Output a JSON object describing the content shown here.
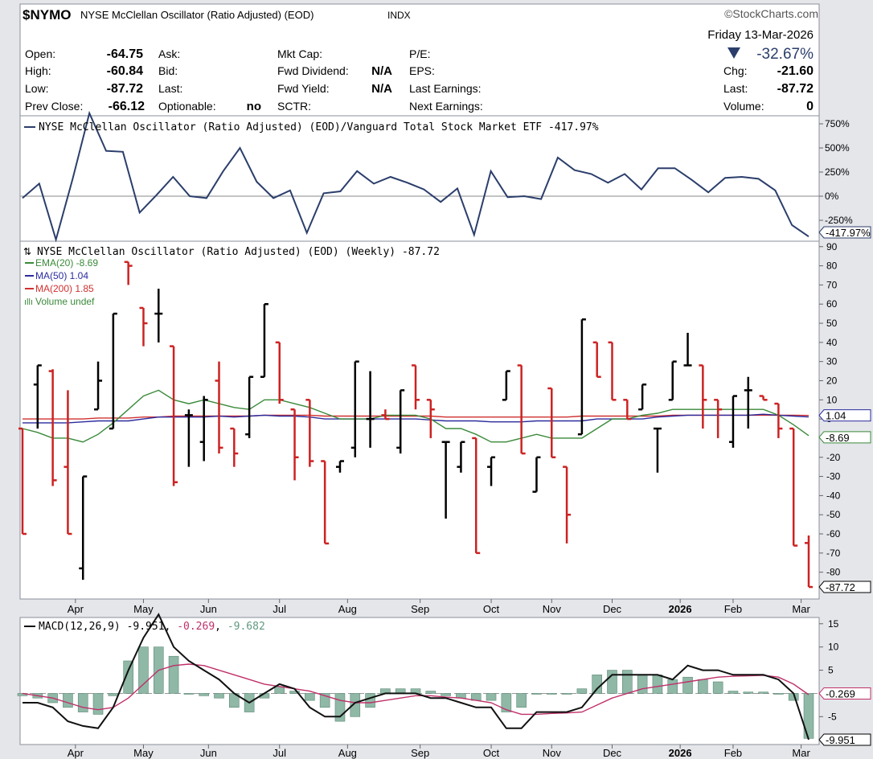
{
  "header": {
    "symbol": "$NYMO",
    "name": "NYSE McClellan Oscillator (Ratio Adjusted) (EOD)",
    "exchange": "INDX",
    "brand": "StockCharts.com",
    "date": "Friday  13-Mar-2026",
    "stats": {
      "open_label": "Open:",
      "open": "-64.75",
      "high_label": "High:",
      "high": "-60.84",
      "low_label": "Low:",
      "low": "-87.72",
      "prev_label": "Prev Close:",
      "prev": "-66.12",
      "ask_label": "Ask:",
      "bid_label": "Bid:",
      "last_label": "Last:",
      "optionable_label": "Optionable:",
      "optionable": "no",
      "mktcap_label": "Mkt Cap:",
      "fwddiv_label": "Fwd Dividend:",
      "fwddiv": "N/A",
      "fwdyield_label": "Fwd Yield:",
      "fwdyield": "N/A",
      "sctr_label": "SCTR:",
      "pe_label": "P/E:",
      "eps_label": "EPS:",
      "lastearn_label": "Last Earnings:",
      "nextearn_label": "Next Earnings:",
      "change_pct": "-32.67%",
      "chg_label": "Chg:",
      "chg": "-21.60",
      "last2_label": "Last:",
      "last2": "-87.72",
      "volume_label": "Volume:",
      "volume": "0"
    }
  },
  "colors": {
    "bg": "#e4e6ea",
    "panel": "#ffffff",
    "up": "#000000",
    "down": "#cc2222",
    "ema": "#3a8a3a",
    "ma50": "#2b2b9e",
    "ma200": "#d03030",
    "ratio": "#2b3e6b",
    "macd": "#111111",
    "signal": "#c0306a",
    "hist": "#8fb8a6",
    "accent": "#2b3e6b"
  },
  "chart_data": [
    {
      "type": "line",
      "title": "NYSE McClellan Oscillator (Ratio Adjusted) (EOD)/Vanguard Total Stock Market ETF -417.97%",
      "ylabel": "",
      "yticks": [
        "750%",
        "500%",
        "250%",
        "0%",
        "-250%"
      ],
      "tick_values": [
        750,
        500,
        250,
        0,
        -250
      ],
      "ylim": [
        -450,
        800
      ],
      "current_label": "-417.97%",
      "series": [
        {
          "values": [
            -20,
            130,
            -450,
            180,
            860,
            470,
            460,
            -170,
            10,
            200,
            0,
            -20,
            260,
            500,
            150,
            -20,
            60,
            -380,
            30,
            50,
            260,
            130,
            200,
            140,
            70,
            -60,
            80,
            -400,
            260,
            -10,
            0,
            -30,
            400,
            270,
            230,
            140,
            230,
            70,
            290,
            290,
            170,
            40,
            190,
            200,
            180,
            60,
            -300,
            -417.97
          ]
        }
      ]
    },
    {
      "type": "ohlc",
      "title": "NYSE McClellan Oscillator (Ratio Adjusted) (EOD) (Weekly) -87.72",
      "legend": [
        {
          "name": "EMA(20) -8.69",
          "color": "#3a8a3a"
        },
        {
          "name": "MA(50) 1.04",
          "color": "#2b2b9e"
        },
        {
          "name": "MA(200) 1.85",
          "color": "#d03030"
        },
        {
          "name": "Volume undef",
          "color": "#3a8a3a"
        }
      ],
      "xlabels": [
        "Apr",
        "May",
        "Jun",
        "Jul",
        "Aug",
        "Sep",
        "Oct",
        "Nov",
        "Dec",
        "2026",
        "Feb",
        "Mar"
      ],
      "xlabel_weeks": [
        3.5,
        8,
        12.3,
        17,
        21.5,
        26.3,
        31,
        35,
        39,
        43.5,
        47,
        51.5
      ],
      "yticks": [
        90,
        80,
        70,
        60,
        50,
        40,
        30,
        20,
        10,
        0,
        -10,
        -20,
        -30,
        -40,
        -50,
        -60,
        -70,
        -80
      ],
      "ylim": [
        -94,
        92
      ],
      "labels": {
        "ma50": "1.04",
        "ema20": "-8.69",
        "last": "-87.72"
      },
      "candles": [
        {
          "w": 0,
          "o": -5,
          "h": -5,
          "l": -60,
          "c": -60
        },
        {
          "w": 1,
          "o": 18,
          "h": 28,
          "l": -5,
          "c": 28
        },
        {
          "w": 2,
          "o": 25,
          "h": 26,
          "l": -35,
          "c": -32
        },
        {
          "w": 3,
          "o": -25,
          "h": 15,
          "l": -60,
          "c": -60
        },
        {
          "w": 4,
          "o": -78,
          "h": -30,
          "l": -84,
          "c": -30
        },
        {
          "w": 5,
          "o": 5,
          "h": 30,
          "l": 5,
          "c": 20
        },
        {
          "w": 6,
          "o": -5,
          "h": 55,
          "l": -5,
          "c": 55
        },
        {
          "w": 7,
          "o": 82,
          "h": 82,
          "l": 70,
          "c": 80
        },
        {
          "w": 8,
          "o": 58,
          "h": 58,
          "l": 38,
          "c": 50
        },
        {
          "w": 9,
          "o": 55,
          "h": 68,
          "l": 40,
          "c": 55
        },
        {
          "w": 10,
          "o": 38,
          "h": 38,
          "l": -35,
          "c": -33
        },
        {
          "w": 11,
          "o": 2,
          "h": 5,
          "l": -25,
          "c": 2
        },
        {
          "w": 12,
          "o": -12,
          "h": 12,
          "l": -22,
          "c": 10
        },
        {
          "w": 13,
          "o": 20,
          "h": 30,
          "l": -18,
          "c": -15
        },
        {
          "w": 14,
          "o": -5,
          "h": -5,
          "l": -25,
          "c": -18
        },
        {
          "w": 15,
          "o": -8,
          "h": 22,
          "l": -10,
          "c": 22
        },
        {
          "w": 16,
          "o": 22,
          "h": 60,
          "l": 22,
          "c": 60
        },
        {
          "w": 17,
          "o": 40,
          "h": 40,
          "l": 8,
          "c": 10
        },
        {
          "w": 18,
          "o": 5,
          "h": 5,
          "l": -32,
          "c": -20
        },
        {
          "w": 19,
          "o": 10,
          "h": 10,
          "l": -25,
          "c": -22
        },
        {
          "w": 20,
          "o": -22,
          "h": -22,
          "l": -65,
          "c": -65
        },
        {
          "w": 21,
          "o": -25,
          "h": -22,
          "l": -28,
          "c": -22
        },
        {
          "w": 22,
          "o": -15,
          "h": 30,
          "l": -20,
          "c": 30
        },
        {
          "w": 23,
          "o": 0,
          "h": 25,
          "l": -15,
          "c": 0
        },
        {
          "w": 24,
          "o": 2,
          "h": 5,
          "l": 0,
          "c": 0
        },
        {
          "w": 25,
          "o": -15,
          "h": 15,
          "l": -18,
          "c": 15
        },
        {
          "w": 26,
          "o": 28,
          "h": 28,
          "l": 5,
          "c": 10
        },
        {
          "w": 27,
          "o": 10,
          "h": 10,
          "l": -10,
          "c": 5
        },
        {
          "w": 28,
          "o": -12,
          "h": -12,
          "l": -52,
          "c": -12
        },
        {
          "w": 29,
          "o": -25,
          "h": -12,
          "l": -28,
          "c": -12
        },
        {
          "w": 30,
          "o": -10,
          "h": -10,
          "l": -70,
          "c": -70
        },
        {
          "w": 31,
          "o": -25,
          "h": -20,
          "l": -35,
          "c": -20
        },
        {
          "w": 32,
          "o": 10,
          "h": 25,
          "l": 10,
          "c": 25
        },
        {
          "w": 33,
          "o": 28,
          "h": 28,
          "l": -18,
          "c": -18
        },
        {
          "w": 34,
          "o": -38,
          "h": -20,
          "l": -38,
          "c": -20
        },
        {
          "w": 35,
          "o": 16,
          "h": 16,
          "l": -20,
          "c": -20
        },
        {
          "w": 36,
          "o": -25,
          "h": -25,
          "l": -65,
          "c": -50
        },
        {
          "w": 37,
          "o": -8,
          "h": 52,
          "l": -8,
          "c": 52
        },
        {
          "w": 38,
          "o": 40,
          "h": 40,
          "l": 22,
          "c": 22
        },
        {
          "w": 39,
          "o": 40,
          "h": 40,
          "l": 10,
          "c": 10
        },
        {
          "w": 40,
          "o": 10,
          "h": 10,
          "l": 0,
          "c": 0
        },
        {
          "w": 41,
          "o": 5,
          "h": 18,
          "l": 5,
          "c": 18
        },
        {
          "w": 42,
          "o": -5,
          "h": -5,
          "l": -28,
          "c": -5
        },
        {
          "w": 43,
          "o": 10,
          "h": 30,
          "l": 10,
          "c": 30
        },
        {
          "w": 44,
          "o": 28,
          "h": 45,
          "l": 28,
          "c": 28
        },
        {
          "w": 45,
          "o": 28,
          "h": 28,
          "l": -5,
          "c": 10
        },
        {
          "w": 46,
          "o": 10,
          "h": 10,
          "l": -10,
          "c": 5
        },
        {
          "w": 47,
          "o": -12,
          "h": 12,
          "l": -15,
          "c": 12
        },
        {
          "w": 48,
          "o": 15,
          "h": 22,
          "l": -5,
          "c": 15
        },
        {
          "w": 49,
          "o": 12,
          "h": 12,
          "l": 10,
          "c": 10
        },
        {
          "w": 50,
          "o": 8,
          "h": 8,
          "l": -10,
          "c": -5
        },
        {
          "w": 51,
          "o": -5,
          "h": -5,
          "l": -66.12,
          "c": -66.12
        },
        {
          "w": 52,
          "o": -64.75,
          "h": -60.84,
          "l": -87.72,
          "c": -87.72
        }
      ],
      "ema20": [
        -5,
        -7,
        -10,
        -10,
        -12,
        -8,
        -2,
        5,
        12,
        15,
        10,
        8,
        10,
        8,
        6,
        5,
        10,
        10,
        8,
        6,
        3,
        0,
        0,
        0,
        2,
        2,
        2,
        0,
        -5,
        -5,
        -8,
        -12,
        -12,
        -10,
        -8,
        -10,
        -10,
        -10,
        -5,
        0,
        0,
        2,
        3,
        5,
        5,
        5,
        5,
        5,
        5,
        5,
        2,
        -3,
        -8.69
      ],
      "ma50": [
        -2,
        -2,
        -2,
        -2,
        -1.5,
        -1,
        -1,
        -1,
        0,
        1,
        1,
        1,
        1,
        1.5,
        1,
        1.5,
        2,
        1.5,
        1.5,
        1,
        0,
        0,
        0,
        0,
        0,
        0,
        0,
        -0.5,
        -1,
        -1,
        -1,
        -1.5,
        -1.5,
        -1.5,
        -1,
        -1,
        -1,
        -1,
        0,
        0,
        0,
        0,
        1,
        1.5,
        2,
        2,
        2,
        2,
        2,
        2.5,
        2,
        1.5,
        1.04
      ],
      "ma200": [
        0,
        0,
        0,
        0,
        0,
        0.5,
        0.5,
        0.5,
        1,
        1,
        1.5,
        1.5,
        1.5,
        1.5,
        1.5,
        1.5,
        2,
        2,
        2,
        2,
        1.5,
        1.5,
        1.5,
        1.5,
        1.5,
        1.5,
        1.5,
        1.5,
        1,
        1,
        1,
        1,
        1,
        1,
        1,
        1,
        1,
        1.5,
        1.5,
        1.5,
        1.5,
        1.5,
        1.5,
        2,
        2,
        2,
        2,
        2,
        2,
        2,
        2,
        2,
        1.85
      ]
    },
    {
      "type": "line",
      "title": "MACD(12,26,9)",
      "values_label": {
        "macd": "-9.951",
        "signal": "-0.269",
        "hist": "-9.682"
      },
      "yticks": [
        15,
        10,
        5,
        0,
        -5
      ],
      "ylim": [
        -11,
        16
      ],
      "labels": {
        "signal": "-0.269",
        "macd": "-9.951"
      },
      "series": [
        {
          "name": "MACD",
          "values": [
            -2,
            -2,
            -3,
            -6,
            -7,
            -7.5,
            -3,
            5,
            12,
            17,
            10,
            7,
            5,
            3,
            0,
            -2,
            0,
            2,
            1,
            -3,
            -5,
            -5,
            -2,
            -1,
            0,
            0,
            0,
            -1,
            -1,
            -2,
            -3,
            -3,
            -7.5,
            -7.5,
            -4,
            -4,
            -4,
            -3,
            1,
            4,
            4,
            4,
            4,
            3,
            6,
            5,
            5,
            4,
            4,
            4,
            3,
            0,
            -9.951
          ]
        },
        {
          "name": "Signal",
          "values": [
            0,
            -0.5,
            -1,
            -2,
            -3,
            -3.5,
            -3,
            -1,
            2,
            5,
            6,
            6.3,
            6,
            5,
            4,
            3,
            2,
            1.5,
            1,
            0.5,
            -0.5,
            -1.5,
            -2,
            -2,
            -1.5,
            -1,
            -0.5,
            -0.5,
            -0.8,
            -1,
            -1.5,
            -2,
            -3.5,
            -4.5,
            -4.5,
            -4.3,
            -4.2,
            -4,
            -2.5,
            -1,
            0,
            1,
            1.5,
            2,
            2.5,
            3,
            3.5,
            3.7,
            3.8,
            3.9,
            3.5,
            2,
            -0.269
          ]
        },
        {
          "name": "Histogram",
          "values": [
            -0.5,
            -1,
            -2,
            -3,
            -4,
            -4.5,
            -0.5,
            7,
            10,
            10,
            8,
            0,
            -0.5,
            -1,
            -3,
            -4,
            -1,
            1.5,
            0.5,
            -1.5,
            -3,
            -6,
            -5,
            -3,
            1,
            1,
            1,
            0.5,
            -0.5,
            -1,
            -1.5,
            -1.5,
            -4,
            -3,
            0,
            0,
            0,
            1,
            4,
            5,
            5,
            4,
            4,
            3,
            3.5,
            3,
            2.5,
            0.5,
            0.3,
            0.3,
            0,
            -1.5,
            -9.682
          ]
        }
      ],
      "xlabels": [
        "Apr",
        "May",
        "Jun",
        "Jul",
        "Aug",
        "Sep",
        "Oct",
        "Nov",
        "Dec",
        "2026",
        "Feb",
        "Mar"
      ]
    }
  ]
}
